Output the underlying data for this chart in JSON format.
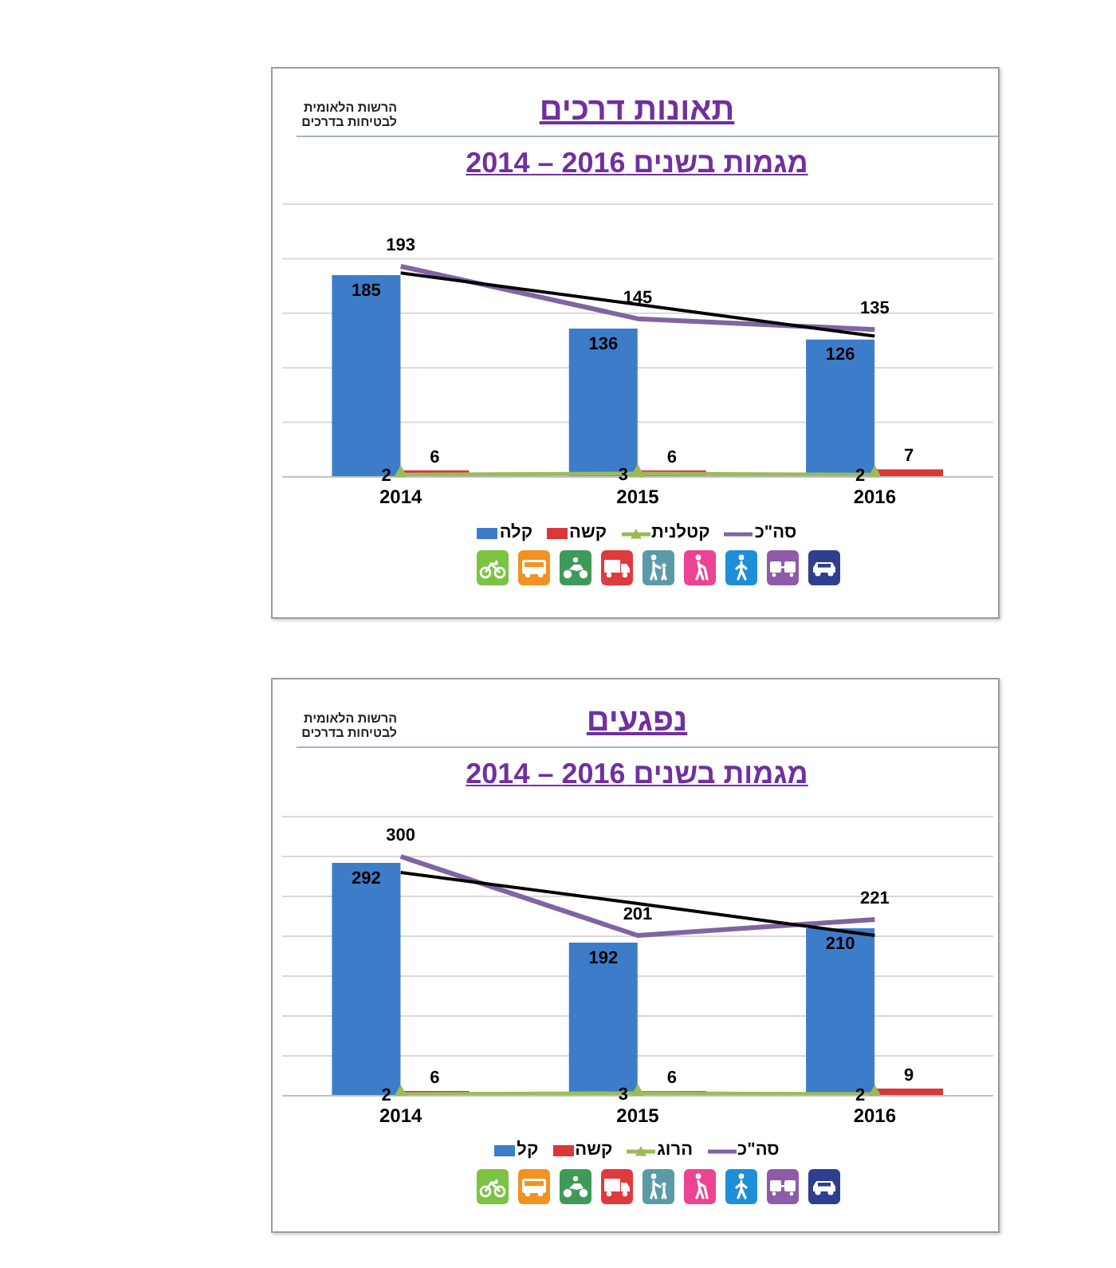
{
  "chart_data": [
    {
      "type": "bar",
      "title": "תאונות דרכים",
      "subtitle": "מגמות בשנים 2016 – 2014",
      "annotations": [
        "הרשות הלאומית לבטיחות בדרכים"
      ],
      "categories": [
        "2014",
        "2015",
        "2016"
      ],
      "series": [
        {
          "name": "קלה",
          "color": "#3d7cc9",
          "values": [
            185,
            136,
            126
          ],
          "value_labels": [
            "185",
            "136",
            "126"
          ]
        },
        {
          "name": "קשה",
          "color": "#d9383a",
          "values": [
            6,
            6,
            7
          ],
          "value_labels": [
            "6",
            "6",
            "7"
          ]
        },
        {
          "name": "קטלנית",
          "type": "line",
          "color": "#9bbb59",
          "marker": "triangle",
          "values": [
            2,
            3,
            2
          ],
          "value_labels": [
            "2",
            "3",
            "2"
          ]
        },
        {
          "name": "סה\"כ",
          "type": "line",
          "color": "#8064a2",
          "values": [
            193,
            145,
            135
          ],
          "value_labels": [
            "193",
            "145",
            "135"
          ]
        },
        {
          "type": "line",
          "color": "#000000",
          "values": [
            187,
            158,
            129
          ]
        }
      ],
      "ylim": [
        0,
        250
      ],
      "yticks": [
        {
          "value": 0,
          "label": null
        },
        {
          "value": 50,
          "label": null
        },
        {
          "value": 100,
          "label": null
        },
        {
          "value": 150,
          "label": null
        },
        {
          "value": 200,
          "label": null
        },
        {
          "value": 250,
          "label": null
        }
      ],
      "grid": "y",
      "tick_labels": "x",
      "legend": "bottom"
    },
    {
      "type": "bar",
      "title": "נפגעים",
      "subtitle": "מגמות בשנים 2016 – 2014",
      "annotations": [
        "הרשות הלאומית לבטיחות בדרכים"
      ],
      "categories": [
        "2014",
        "2015",
        "2016"
      ],
      "series": [
        {
          "name": "קל",
          "color": "#3d7cc9",
          "values": [
            292,
            192,
            210
          ],
          "value_labels": [
            "292",
            "192",
            "210"
          ]
        },
        {
          "name": "קשה",
          "color": "#d9383a",
          "values": [
            6,
            6,
            9
          ],
          "value_labels": [
            "6",
            "6",
            "9"
          ]
        },
        {
          "name": "הרוג",
          "type": "line",
          "color": "#9bbb59",
          "marker": "triangle",
          "values": [
            2,
            3,
            2
          ],
          "value_labels": [
            "2",
            "3",
            "2"
          ]
        },
        {
          "name": "סה\"כ",
          "type": "line",
          "color": "#8064a2",
          "values": [
            300,
            201,
            221
          ],
          "value_labels": [
            "300",
            "201",
            "221"
          ]
        },
        {
          "type": "line",
          "color": "#000000",
          "values": [
            280,
            241,
            201
          ]
        }
      ],
      "ylim": [
        0,
        350
      ],
      "yticks": [
        {
          "value": 0,
          "label": null
        },
        {
          "value": 50,
          "label": null
        },
        {
          "value": 100,
          "label": null
        },
        {
          "value": 150,
          "label": null
        },
        {
          "value": 200,
          "label": null
        },
        {
          "value": 250,
          "label": null
        },
        {
          "value": 300,
          "label": null
        },
        {
          "value": 350,
          "label": null
        }
      ],
      "grid": "y",
      "tick_labels": "x",
      "legend": "bottom"
    }
  ]
}
